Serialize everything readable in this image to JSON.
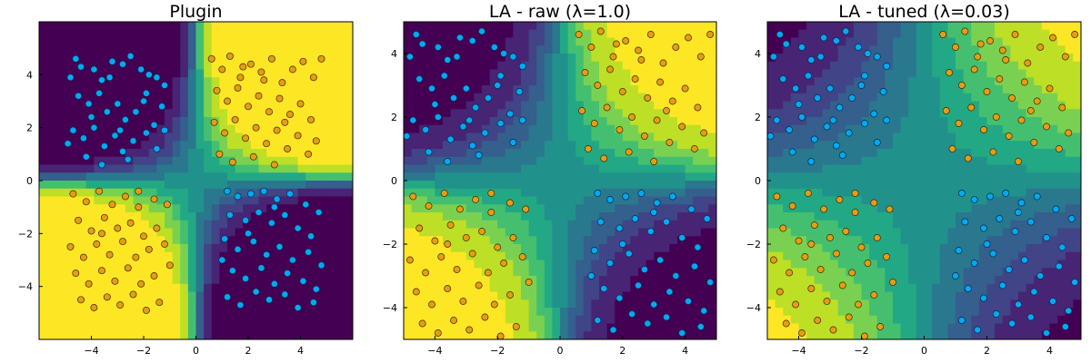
{
  "chart_data": [
    {
      "type": "scatter",
      "title": "Plugin",
      "xlabel": "",
      "ylabel": "",
      "xlim": [
        -6,
        6
      ],
      "ylim": [
        -6,
        6
      ],
      "x_ticks": [
        -4,
        -2,
        0,
        2,
        4
      ],
      "y_ticks": [
        -4,
        -2,
        0,
        2,
        4
      ],
      "tick_labels_x": [
        "−4",
        "−2",
        "0",
        "2",
        "4"
      ],
      "tick_labels_y": [
        "−4",
        "−2",
        "0",
        "2",
        "4"
      ],
      "background": "contour",
      "contour_sharpness": 2.2,
      "contour_colormap": "viridis",
      "grid": false,
      "legend": "none"
    },
    {
      "type": "scatter",
      "title": "LA - raw (λ=1.0)",
      "xlabel": "",
      "ylabel": "",
      "xlim": [
        -5,
        5
      ],
      "ylim": [
        -5,
        5
      ],
      "x_ticks": [
        -4,
        -2,
        0,
        2,
        4
      ],
      "y_ticks": [
        -4,
        -2,
        0,
        2,
        4
      ],
      "tick_labels_x": [
        "−4",
        "−2",
        "0",
        "2",
        "4"
      ],
      "tick_labels_y": [
        "−4",
        "−2",
        "0",
        "2",
        "4"
      ],
      "background": "contour",
      "contour_sharpness": 0.9,
      "contour_colormap": "viridis",
      "grid": false,
      "legend": "none"
    },
    {
      "type": "scatter",
      "title": "LA - tuned (λ=0.03)",
      "xlabel": "",
      "ylabel": "",
      "xlim": [
        -5,
        5
      ],
      "ylim": [
        -5,
        5
      ],
      "x_ticks": [
        -4,
        -2,
        0,
        2,
        4
      ],
      "y_ticks": [
        -4,
        -2,
        0,
        2,
        4
      ],
      "tick_labels_x": [
        "−4",
        "−2",
        "0",
        "2",
        "4"
      ],
      "tick_labels_y": [
        "−4",
        "−2",
        "0",
        "2",
        "4"
      ],
      "background": "contour",
      "contour_sharpness": 0.35,
      "contour_colormap": "viridis",
      "grid": false,
      "legend": "none"
    }
  ],
  "series_colors": {
    "class_0": "#00a9f5",
    "class_1": "#e69d13"
  },
  "points": {
    "class_0": [
      [
        -4.6,
        4.6
      ],
      [
        -4.4,
        4.3
      ],
      [
        -4.8,
        3.9
      ],
      [
        -3.9,
        4.2
      ],
      [
        -3.6,
        3.8
      ],
      [
        -3.2,
        4.5
      ],
      [
        -2.8,
        4.4
      ],
      [
        -2.5,
        4.7
      ],
      [
        -2.1,
        4.2
      ],
      [
        -1.8,
        4.0
      ],
      [
        -1.5,
        3.9
      ],
      [
        -1.2,
        3.6
      ],
      [
        -4.5,
        3.2
      ],
      [
        -4.1,
        2.9
      ],
      [
        -3.7,
        3.3
      ],
      [
        -3.4,
        2.6
      ],
      [
        -3.0,
        2.9
      ],
      [
        -2.7,
        2.3
      ],
      [
        -2.3,
        2.6
      ],
      [
        -2.0,
        3.0
      ],
      [
        -1.6,
        2.1
      ],
      [
        -1.3,
        2.8
      ],
      [
        -4.7,
        1.9
      ],
      [
        -4.3,
        1.6
      ],
      [
        -3.9,
        2.0
      ],
      [
        -3.5,
        1.3
      ],
      [
        -3.1,
        1.7
      ],
      [
        -2.8,
        1.1
      ],
      [
        -2.4,
        1.5
      ],
      [
        -1.9,
        1.8
      ],
      [
        -1.5,
        1.2
      ],
      [
        -4.9,
        1.4
      ],
      [
        -4.2,
        0.9
      ],
      [
        -3.6,
        0.6
      ],
      [
        -2.6,
        0.8
      ],
      [
        -1.2,
        1.9
      ],
      [
        -3.3,
        3.9
      ],
      [
        -1.9,
        3.3
      ],
      [
        -2.9,
        1.9
      ],
      [
        -4.0,
        2.4
      ],
      [
        1.2,
        -0.4
      ],
      [
        1.6,
        -0.6
      ],
      [
        2.1,
        -0.5
      ],
      [
        2.6,
        -0.4
      ],
      [
        3.1,
        -0.7
      ],
      [
        3.6,
        -0.5
      ],
      [
        4.2,
        -0.9
      ],
      [
        4.7,
        -1.2
      ],
      [
        1.3,
        -1.3
      ],
      [
        1.9,
        -1.5
      ],
      [
        2.4,
        -1.2
      ],
      [
        2.9,
        -1.6
      ],
      [
        3.4,
        -1.3
      ],
      [
        3.9,
        -1.8
      ],
      [
        4.4,
        -2.1
      ],
      [
        1.1,
        -2.2
      ],
      [
        1.6,
        -2.6
      ],
      [
        2.2,
        -2.3
      ],
      [
        2.7,
        -2.8
      ],
      [
        3.2,
        -2.5
      ],
      [
        3.7,
        -3.0
      ],
      [
        4.3,
        -2.7
      ],
      [
        4.8,
        -3.2
      ],
      [
        1.4,
        -3.4
      ],
      [
        1.9,
        -3.7
      ],
      [
        2.5,
        -3.3
      ],
      [
        3.0,
        -3.9
      ],
      [
        3.5,
        -3.5
      ],
      [
        4.1,
        -3.8
      ],
      [
        4.6,
        -4.1
      ],
      [
        1.2,
        -4.4
      ],
      [
        1.7,
        -4.7
      ],
      [
        2.3,
        -4.2
      ],
      [
        2.8,
        -4.5
      ],
      [
        3.4,
        -4.3
      ],
      [
        3.9,
        -4.8
      ],
      [
        4.5,
        -4.6
      ],
      [
        2.0,
        -2.0
      ],
      [
        3.0,
        -1.0
      ],
      [
        1.0,
        -3.0
      ]
    ],
    "class_1": [
      [
        0.6,
        4.6
      ],
      [
        1.0,
        4.2
      ],
      [
        1.3,
        4.7
      ],
      [
        1.7,
        3.9
      ],
      [
        2.1,
        4.4
      ],
      [
        2.5,
        4.1
      ],
      [
        2.9,
        4.6
      ],
      [
        3.3,
        3.7
      ],
      [
        3.7,
        4.2
      ],
      [
        4.1,
        4.5
      ],
      [
        4.5,
        3.9
      ],
      [
        0.8,
        3.4
      ],
      [
        1.2,
        3.0
      ],
      [
        1.6,
        3.5
      ],
      [
        2.0,
        2.8
      ],
      [
        2.4,
        3.2
      ],
      [
        2.8,
        2.6
      ],
      [
        3.2,
        3.1
      ],
      [
        3.6,
        2.5
      ],
      [
        4.0,
        2.9
      ],
      [
        4.4,
        2.3
      ],
      [
        0.7,
        2.2
      ],
      [
        1.1,
        1.8
      ],
      [
        1.5,
        2.3
      ],
      [
        1.9,
        1.6
      ],
      [
        2.3,
        2.0
      ],
      [
        2.7,
        1.4
      ],
      [
        3.1,
        1.9
      ],
      [
        3.5,
        1.2
      ],
      [
        3.9,
        1.7
      ],
      [
        4.3,
        1.0
      ],
      [
        0.9,
        1.0
      ],
      [
        1.4,
        0.7
      ],
      [
        2.2,
        0.9
      ],
      [
        3.0,
        0.6
      ],
      [
        4.6,
        1.5
      ],
      [
        2.6,
        3.8
      ],
      [
        1.8,
        4.3
      ],
      [
        3.4,
        2.2
      ],
      [
        4.8,
        4.6
      ],
      [
        -4.7,
        -0.5
      ],
      [
        -4.2,
        -0.8
      ],
      [
        -3.7,
        -0.4
      ],
      [
        -3.2,
        -0.9
      ],
      [
        -2.7,
        -0.6
      ],
      [
        -2.2,
        -1.0
      ],
      [
        -1.6,
        -0.7
      ],
      [
        -1.1,
        -0.9
      ],
      [
        -4.5,
        -1.5
      ],
      [
        -4.0,
        -1.9
      ],
      [
        -3.5,
        -1.4
      ],
      [
        -3.0,
        -1.8
      ],
      [
        -2.5,
        -1.6
      ],
      [
        -2.0,
        -2.1
      ],
      [
        -1.5,
        -1.8
      ],
      [
        -4.8,
        -2.5
      ],
      [
        -4.3,
        -2.9
      ],
      [
        -3.8,
        -2.4
      ],
      [
        -3.3,
        -2.8
      ],
      [
        -2.8,
        -2.3
      ],
      [
        -2.3,
        -2.9
      ],
      [
        -1.8,
        -2.6
      ],
      [
        -1.2,
        -2.4
      ],
      [
        -4.6,
        -3.5
      ],
      [
        -4.1,
        -3.9
      ],
      [
        -3.6,
        -3.4
      ],
      [
        -3.1,
        -3.8
      ],
      [
        -2.6,
        -3.3
      ],
      [
        -2.1,
        -3.9
      ],
      [
        -1.6,
        -3.6
      ],
      [
        -4.4,
        -4.5
      ],
      [
        -3.9,
        -4.8
      ],
      [
        -3.4,
        -4.4
      ],
      [
        -2.9,
        -4.7
      ],
      [
        -2.4,
        -4.3
      ],
      [
        -1.9,
        -4.9
      ],
      [
        -1.4,
        -4.6
      ],
      [
        -2.2,
        -0.4
      ],
      [
        -3.6,
        -2.0
      ],
      [
        -1.0,
        -3.2
      ]
    ]
  }
}
